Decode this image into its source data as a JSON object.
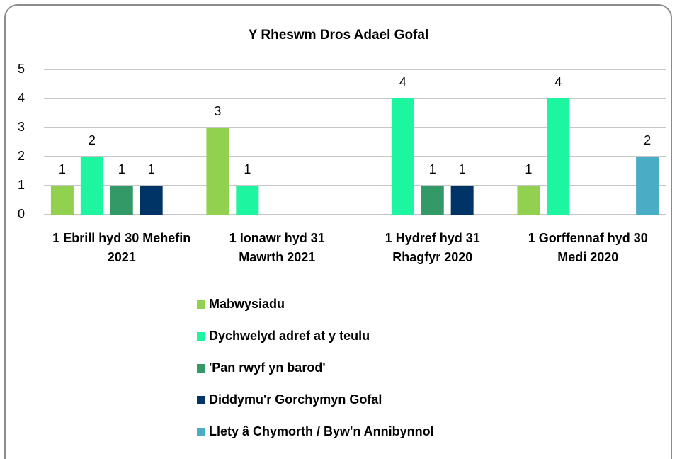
{
  "chart_data": {
    "type": "bar",
    "title": "Y Rheswm Dros Adael Gofal",
    "categories": [
      "1 Ebrill hyd 30 Mehefin 2021",
      "1 Ionawr hyd 31 Mawrth 2021",
      "1 Hydref hyd 31 Rhagfyr 2020",
      "1 Gorffennaf hyd 30  Medi 2020"
    ],
    "series": [
      {
        "name": "Mabwysiadu",
        "color": "#92d050",
        "values": [
          1,
          3,
          null,
          1
        ]
      },
      {
        "name": "Dychwelyd adref at y teulu",
        "color": "#1ef5a0",
        "values": [
          2,
          1,
          4,
          4
        ]
      },
      {
        "name": "'Pan rwyf yn barod'",
        "color": "#339966",
        "values": [
          1,
          null,
          1,
          null
        ]
      },
      {
        "name": "Diddymu'r Gorchymyn Gofal",
        "color": "#003366",
        "values": [
          1,
          null,
          1,
          null
        ]
      },
      {
        "name": "Llety â Chymorth / Byw'n Annibynnol",
        "color": "#4bacc6",
        "values": [
          null,
          null,
          null,
          2
        ]
      }
    ],
    "ylim": [
      0,
      5
    ],
    "yticks": [
      0,
      1,
      2,
      3,
      4,
      5
    ],
    "grid": true,
    "legend": "bottom"
  }
}
